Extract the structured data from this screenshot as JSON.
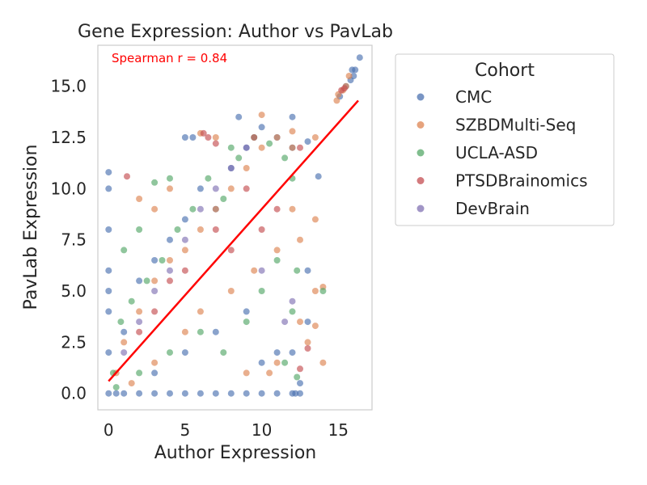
{
  "chart_data": {
    "type": "scatter",
    "title": "Gene Expression: Author vs PavLab",
    "xlabel": "Author Expression",
    "ylabel": "PavLab Expression",
    "xlim": [
      -0.7,
      17.2
    ],
    "ylim": [
      -0.8,
      17.0
    ],
    "x_ticks": [
      0,
      5,
      10,
      15
    ],
    "y_ticks": [
      0.0,
      2.5,
      5.0,
      7.5,
      10.0,
      12.5,
      15.0
    ],
    "x_tick_labels": [
      "0",
      "5",
      "10",
      "15"
    ],
    "y_tick_labels": [
      "0.0",
      "2.5",
      "5.0",
      "7.5",
      "10.0",
      "12.5",
      "15.0"
    ],
    "grid": false,
    "annotation": "Spearman r = 0.84",
    "annotation_color": "#ff0000",
    "legend": {
      "title": "Cohort",
      "placement": "outside-right",
      "entries": [
        {
          "name": "CMC",
          "color": "#4c72b0"
        },
        {
          "name": "SZBDMulti-Seq",
          "color": "#dd8452"
        },
        {
          "name": "UCLA-ASD",
          "color": "#55a868"
        },
        {
          "name": "PTSDBrainomics",
          "color": "#c44e52"
        },
        {
          "name": "DevBrain",
          "color": "#8172b3"
        }
      ]
    },
    "trend_line": {
      "color": "#ff0000",
      "points": [
        [
          0,
          0.6
        ],
        [
          16.3,
          14.3
        ]
      ]
    },
    "series": [
      {
        "name": "CMC",
        "color": "#4c72b0",
        "points": [
          [
            0,
            0
          ],
          [
            0.5,
            0
          ],
          [
            1,
            0
          ],
          [
            2,
            0
          ],
          [
            3,
            0
          ],
          [
            4,
            0
          ],
          [
            5,
            0
          ],
          [
            6,
            0
          ],
          [
            7,
            0
          ],
          [
            8,
            0
          ],
          [
            9,
            0
          ],
          [
            10,
            0
          ],
          [
            11,
            0
          ],
          [
            12,
            0
          ],
          [
            12.5,
            0
          ],
          [
            0,
            2.0
          ],
          [
            0,
            4.0
          ],
          [
            0,
            5.0
          ],
          [
            0,
            6.0
          ],
          [
            0,
            8.0
          ],
          [
            0,
            10.0
          ],
          [
            0,
            10.8
          ],
          [
            1.0,
            3.0
          ],
          [
            2.0,
            5.5
          ],
          [
            3.0,
            6.5
          ],
          [
            4.0,
            7.5
          ],
          [
            5.0,
            8.5
          ],
          [
            6.0,
            10.0
          ],
          [
            7.0,
            9.0
          ],
          [
            8.0,
            11.0
          ],
          [
            9.0,
            12.0
          ],
          [
            10.0,
            13.0
          ],
          [
            11.0,
            12.5
          ],
          [
            12.0,
            13.5
          ],
          [
            5.0,
            12.5
          ],
          [
            5.5,
            12.5
          ],
          [
            8.5,
            13.5
          ],
          [
            12.0,
            12.0
          ],
          [
            13.0,
            12.3
          ],
          [
            13.7,
            10.6
          ],
          [
            13.0,
            6.0
          ],
          [
            13.0,
            3.5
          ],
          [
            15.1,
            14.5
          ],
          [
            15.5,
            15.0
          ],
          [
            15.8,
            15.3
          ],
          [
            15.9,
            15.8
          ],
          [
            16.0,
            15.5
          ],
          [
            16.1,
            15.8
          ],
          [
            16.4,
            16.4
          ],
          [
            3.0,
            1.0
          ],
          [
            5.0,
            2.0
          ],
          [
            7.0,
            3.0
          ],
          [
            9.0,
            4.0
          ],
          [
            10.0,
            1.5
          ],
          [
            11.0,
            2.0
          ],
          [
            12.0,
            2.0
          ],
          [
            12.2,
            0
          ],
          [
            12.5,
            0.5
          ]
        ]
      },
      {
        "name": "SZBDMulti-Seq",
        "color": "#dd8452",
        "points": [
          [
            0.5,
            1.0
          ],
          [
            1.0,
            2.5
          ],
          [
            2.0,
            4.0
          ],
          [
            3.0,
            5.5
          ],
          [
            4.0,
            6.5
          ],
          [
            5.0,
            7.0
          ],
          [
            6.0,
            8.0
          ],
          [
            7.0,
            9.0
          ],
          [
            8.0,
            10.0
          ],
          [
            9.0,
            11.0
          ],
          [
            10.0,
            12.0
          ],
          [
            11.0,
            12.5
          ],
          [
            12.0,
            12.0
          ],
          [
            2.0,
            9.5
          ],
          [
            3.0,
            9.0
          ],
          [
            4.0,
            10.0
          ],
          [
            6.0,
            12.7
          ],
          [
            7.0,
            12.5
          ],
          [
            10.0,
            13.6
          ],
          [
            12.0,
            12.8
          ],
          [
            13.5,
            12.5
          ],
          [
            13.5,
            8.5
          ],
          [
            12.5,
            7.5
          ],
          [
            13.5,
            5.0
          ],
          [
            14.0,
            5.2
          ],
          [
            12.5,
            3.5
          ],
          [
            13.0,
            2.5
          ],
          [
            13.5,
            3.3
          ],
          [
            14.0,
            1.5
          ],
          [
            11.0,
            1.5
          ],
          [
            9.0,
            1.0
          ],
          [
            10.5,
            1.0
          ],
          [
            14.9,
            14.3
          ],
          [
            15.0,
            14.6
          ],
          [
            15.3,
            14.8
          ],
          [
            15.5,
            15.0
          ],
          [
            15.7,
            15.5
          ],
          [
            1.5,
            0.5
          ],
          [
            3.0,
            1.5
          ],
          [
            5.0,
            3.0
          ],
          [
            6.0,
            4.0
          ],
          [
            8.0,
            5.0
          ],
          [
            9.5,
            6.0
          ],
          [
            11.0,
            7.0
          ],
          [
            12.0,
            9.0
          ]
        ]
      },
      {
        "name": "UCLA-ASD",
        "color": "#55a868",
        "points": [
          [
            0.3,
            1.0
          ],
          [
            0.8,
            3.5
          ],
          [
            1.5,
            4.5
          ],
          [
            2.5,
            5.5
          ],
          [
            3.5,
            6.5
          ],
          [
            4.5,
            8.0
          ],
          [
            5.5,
            9.0
          ],
          [
            6.5,
            10.5
          ],
          [
            7.5,
            9.5
          ],
          [
            8.5,
            11.5
          ],
          [
            9.5,
            12.5
          ],
          [
            10.5,
            12.2
          ],
          [
            11.5,
            11.5
          ],
          [
            1.0,
            7.0
          ],
          [
            2.0,
            8.0
          ],
          [
            3.0,
            10.3
          ],
          [
            4.0,
            10.5
          ],
          [
            8.0,
            12.0
          ],
          [
            12.0,
            10.5
          ],
          [
            12.3,
            6.0
          ],
          [
            12.0,
            4.0
          ],
          [
            11.5,
            1.5
          ],
          [
            12.3,
            0.8
          ],
          [
            14.0,
            5.0
          ],
          [
            0.5,
            0.3
          ],
          [
            2.0,
            1.0
          ],
          [
            4.0,
            2.0
          ],
          [
            6.0,
            3.0
          ],
          [
            7.5,
            2.0
          ],
          [
            9.0,
            3.5
          ],
          [
            10.0,
            5.0
          ],
          [
            11.0,
            6.5
          ]
        ]
      },
      {
        "name": "PTSDBrainomics",
        "color": "#c44e52",
        "points": [
          [
            1.2,
            10.6
          ],
          [
            6.2,
            12.7
          ],
          [
            6.5,
            12.5
          ],
          [
            7.0,
            12.2
          ],
          [
            9.5,
            12.5
          ],
          [
            12.5,
            12.0
          ],
          [
            3.0,
            4.0
          ],
          [
            5.0,
            6.0
          ],
          [
            7.0,
            8.0
          ],
          [
            9.0,
            10.0
          ],
          [
            11.0,
            9.0
          ],
          [
            15.2,
            14.8
          ],
          [
            15.4,
            14.9
          ],
          [
            13.0,
            2.2
          ],
          [
            12.5,
            1.2
          ],
          [
            2.0,
            3.0
          ],
          [
            4.0,
            5.5
          ],
          [
            8.0,
            7.0
          ],
          [
            10.0,
            8.0
          ]
        ]
      },
      {
        "name": "DevBrain",
        "color": "#8172b3",
        "points": [
          [
            1.0,
            2.0
          ],
          [
            2.0,
            3.5
          ],
          [
            3.0,
            5.0
          ],
          [
            4.0,
            6.0
          ],
          [
            5.0,
            7.5
          ],
          [
            6.0,
            9.0
          ],
          [
            7.0,
            10.0
          ],
          [
            8.0,
            11.0
          ],
          [
            9.0,
            12.0
          ],
          [
            12.0,
            4.5
          ],
          [
            11.5,
            3.5
          ],
          [
            10.0,
            6.0
          ]
        ]
      }
    ]
  }
}
